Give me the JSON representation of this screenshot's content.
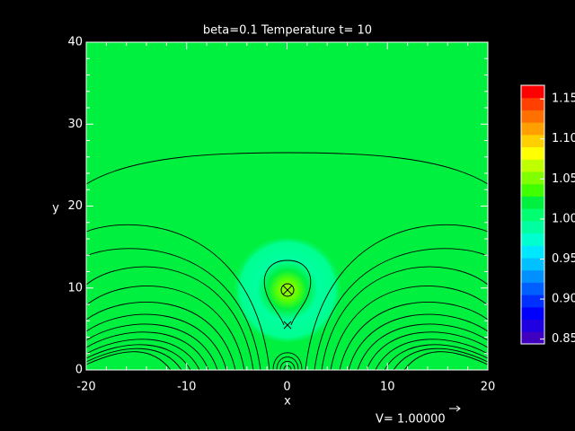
{
  "chart_data": {
    "type": "contour",
    "title": "beta=0.1 Temperature t= 10",
    "x_label": "x",
    "y_label": "y",
    "xlim": [
      -20,
      20
    ],
    "ylim": [
      0,
      40
    ],
    "xticks": [
      -20,
      -10,
      0,
      10,
      20
    ],
    "yticks": [
      0,
      10,
      20,
      30,
      40
    ],
    "grid": false,
    "colorbar": {
      "clim": [
        0.844,
        1.167
      ],
      "ticks": [
        0.85,
        {
          "value": 0.9,
          "label": "0.90"
        },
        0.95,
        {
          "value": 1,
          "label": "1.00"
        },
        1.05,
        {
          "value": 1.1,
          "label": "1.10"
        },
        1.15
      ],
      "colors": [
        "#4000c0",
        "#2000e0",
        "#0000ff",
        "#0030ff",
        "#0060ff",
        "#0090ff",
        "#00c0ff",
        "#00e8ff",
        "#00ffd0",
        "#00ffa0",
        "#00ff70",
        "#00f040",
        "#40ff00",
        "#80ff00",
        "#c0ff00",
        "#ffff00",
        "#ffd000",
        "#ffa000",
        "#ff7000",
        "#ff4000",
        "#ff0000"
      ]
    },
    "annotation": "V= 1.00000"
  }
}
